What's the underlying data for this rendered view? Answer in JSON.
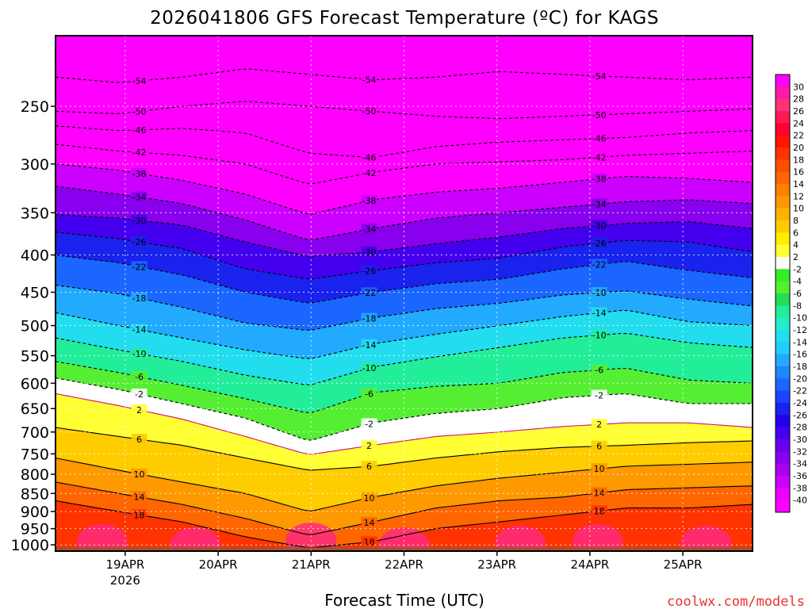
{
  "chart_data": {
    "type": "heatmap",
    "title": "2026041806 GFS Forecast Temperature (ºC) for KAGS",
    "xlabel": "Forecast Time (UTC)",
    "ylabel": "",
    "credit": "coolwx.com/models",
    "x_ticks": [
      {
        "label": "19APR",
        "sub": "2026",
        "hours": 18
      },
      {
        "label": "20APR",
        "sub": "",
        "hours": 42
      },
      {
        "label": "21APR",
        "sub": "",
        "hours": 66
      },
      {
        "label": "22APR",
        "sub": "",
        "hours": 90
      },
      {
        "label": "23APR",
        "sub": "",
        "hours": 114
      },
      {
        "label": "24APR",
        "sub": "",
        "hours": 138
      },
      {
        "label": "25APR",
        "sub": "",
        "hours": 162
      }
    ],
    "x_range_hours": [
      0,
      180
    ],
    "y_ticks": [
      250,
      300,
      350,
      400,
      450,
      500,
      550,
      600,
      650,
      700,
      750,
      800,
      850,
      900,
      950,
      1000
    ],
    "y_range_hpa": [
      200,
      1020
    ],
    "y_scale": "log",
    "colorbar": {
      "labels": [
        30,
        28,
        26,
        24,
        22,
        20,
        18,
        16,
        14,
        12,
        10,
        8,
        6,
        4,
        2,
        -2,
        -4,
        -6,
        -8,
        -10,
        -12,
        -14,
        -16,
        -18,
        -20,
        -22,
        -24,
        -26,
        -28,
        -30,
        -32,
        -34,
        -36,
        -38,
        -40
      ],
      "colors": [
        "#ff00ff",
        "#ff1aa8",
        "#ff3377",
        "#ff1a55",
        "#ff0033",
        "#ff1500",
        "#ff3300",
        "#ff4d00",
        "#ff6600",
        "#ff8000",
        "#ff9900",
        "#ffb300",
        "#ffcc00",
        "#ffee00",
        "#ffff33",
        "#ffffff",
        "#33ee22",
        "#55ee33",
        "#22dd55",
        "#22ee99",
        "#22eecc",
        "#22ddee",
        "#22ccff",
        "#22aaff",
        "#1a88ff",
        "#1a66ff",
        "#1a44ff",
        "#1a22ee",
        "#2200ee",
        "#4400ee",
        "#6600ee",
        "#8800ee",
        "#aa00ee",
        "#cc00ff",
        "#ee00ff",
        "#ff00ff"
      ]
    },
    "isotherm_profiles": [
      {
        "label": "-54",
        "p": [
          228,
          232,
          228,
          222,
          226,
          230,
          228,
          224,
          226,
          228,
          230,
          228
        ]
      },
      {
        "label": "-50",
        "p": [
          254,
          256,
          250,
          246,
          250,
          254,
          258,
          260,
          258,
          256,
          254,
          252
        ]
      },
      {
        "label": "-46",
        "p": [
          266,
          270,
          268,
          272,
          290,
          294,
          284,
          280,
          278,
          276,
          272,
          270
        ]
      },
      {
        "label": "-42",
        "p": [
          282,
          288,
          292,
          300,
          320,
          308,
          300,
          298,
          296,
          292,
          290,
          288
        ]
      },
      {
        "label": "-38",
        "p": [
          300,
          306,
          316,
          330,
          352,
          336,
          328,
          324,
          318,
          312,
          314,
          318
        ]
      },
      {
        "label": "-34",
        "p": [
          322,
          330,
          340,
          358,
          382,
          368,
          356,
          350,
          344,
          338,
          336,
          340
        ]
      },
      {
        "label": "-30",
        "p": [
          352,
          356,
          364,
          384,
          402,
          396,
          386,
          378,
          368,
          362,
          360,
          368
        ]
      },
      {
        "label": "-26",
        "p": [
          372,
          380,
          392,
          418,
          432,
          420,
          410,
          404,
          390,
          382,
          384,
          396
        ]
      },
      {
        "label": "-22",
        "p": [
          400,
          410,
          426,
          450,
          466,
          450,
          438,
          432,
          418,
          408,
          420,
          430
        ]
      },
      {
        "label": "-18",
        "p": [
          440,
          452,
          472,
          496,
          508,
          488,
          474,
          466,
          454,
          448,
          460,
          470
        ]
      },
      {
        "label": "-14",
        "p": [
          480,
          500,
          520,
          540,
          556,
          530,
          514,
          500,
          486,
          476,
          494,
          500
        ]
      },
      {
        "label": "-10",
        "p": [
          520,
          540,
          560,
          585,
          604,
          570,
          552,
          536,
          520,
          512,
          528,
          536
        ]
      },
      {
        "label": "-6",
        "p": [
          560,
          580,
          604,
          630,
          660,
          618,
          606,
          600,
          580,
          572,
          594,
          600
        ]
      },
      {
        "label": "-2",
        "p": [
          590,
          612,
          640,
          670,
          720,
          680,
          660,
          650,
          628,
          620,
          640,
          640
        ]
      },
      {
        "label": "2",
        "p": [
          620,
          644,
          672,
          710,
          752,
          730,
          710,
          700,
          688,
          680,
          680,
          690
        ]
      },
      {
        "label": "6",
        "p": [
          690,
          710,
          730,
          760,
          790,
          780,
          760,
          745,
          735,
          730,
          724,
          720
        ]
      },
      {
        "label": "10",
        "p": [
          760,
          790,
          820,
          850,
          900,
          860,
          830,
          810,
          795,
          780,
          775,
          770
        ]
      },
      {
        "label": "14",
        "p": [
          820,
          850,
          880,
          920,
          970,
          930,
          890,
          870,
          860,
          840,
          835,
          830
        ]
      },
      {
        "label": "18",
        "p": [
          870,
          900,
          930,
          975,
          1010,
          990,
          950,
          930,
          910,
          890,
          890,
          880
        ]
      }
    ]
  }
}
